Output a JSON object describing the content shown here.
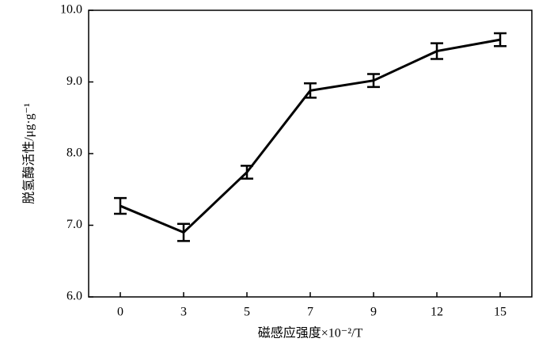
{
  "chart_data": {
    "type": "line",
    "xlabel": "磁感应强度×10⁻²/T",
    "ylabel": "脱氢酶活性/μg·g⁻¹",
    "categories": [
      "0",
      "3",
      "5",
      "7",
      "9",
      "12",
      "15"
    ],
    "values": [
      7.27,
      6.9,
      7.74,
      8.88,
      9.02,
      9.43,
      9.59
    ],
    "errors": [
      0.11,
      0.12,
      0.09,
      0.1,
      0.09,
      0.11,
      0.09
    ],
    "color": "#000000",
    "ylim": [
      6,
      10
    ],
    "yticks": [
      {
        "value": 6,
        "label": "6.0"
      },
      {
        "value": 7,
        "label": "7.0"
      },
      {
        "value": 8,
        "label": "8.0"
      },
      {
        "value": 9,
        "label": "9.0"
      },
      {
        "value": 10,
        "label": "10.0"
      }
    ],
    "grid": false
  }
}
